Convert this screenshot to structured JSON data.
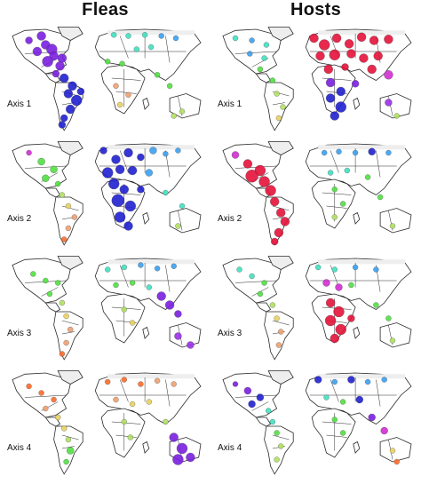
{
  "columns": [
    "Fleas",
    "Hosts"
  ],
  "rows": [
    "Axis 1",
    "Axis 2",
    "Axis 3",
    "Axis 4"
  ],
  "colors": {
    "land": "#ffffff",
    "ice": "#eeeeee",
    "border": "#2a2a2a",
    "palette": [
      "#2020d0",
      "#7a1fe0",
      "#9a30e8",
      "#d22cd2",
      "#e3123a",
      "#ff6a2a",
      "#f0a070",
      "#e8d060",
      "#b0e060",
      "#50e040",
      "#40e0c0",
      "#3aa0f0"
    ]
  },
  "panels": [
    {
      "row": 0,
      "col": 0,
      "dots": [
        [
          0.2,
          0.1,
          1,
          5
        ],
        [
          0.14,
          0.14,
          1,
          4
        ],
        [
          0.22,
          0.18,
          1,
          5
        ],
        [
          0.25,
          0.22,
          1,
          6
        ],
        [
          0.18,
          0.24,
          1,
          5
        ],
        [
          0.26,
          0.28,
          1,
          5
        ],
        [
          0.3,
          0.3,
          1,
          5
        ],
        [
          0.23,
          0.33,
          1,
          6
        ],
        [
          0.29,
          0.37,
          1,
          5
        ],
        [
          0.27,
          0.44,
          1,
          4
        ],
        [
          0.31,
          0.48,
          0,
          5
        ],
        [
          0.35,
          0.55,
          0,
          5
        ],
        [
          0.33,
          0.62,
          0,
          5
        ],
        [
          0.37,
          0.68,
          0,
          6
        ],
        [
          0.34,
          0.76,
          0,
          5
        ],
        [
          0.31,
          0.84,
          0,
          4
        ],
        [
          0.3,
          0.9,
          0,
          4
        ],
        [
          0.39,
          0.6,
          0,
          4
        ],
        [
          0.55,
          0.09,
          10,
          3
        ],
        [
          0.62,
          0.1,
          10,
          3
        ],
        [
          0.7,
          0.09,
          10,
          3
        ],
        [
          0.78,
          0.1,
          11,
          3
        ],
        [
          0.85,
          0.12,
          11,
          3
        ],
        [
          0.66,
          0.22,
          10,
          3
        ],
        [
          0.73,
          0.2,
          10,
          3
        ],
        [
          0.52,
          0.33,
          9,
          3
        ],
        [
          0.59,
          0.35,
          9,
          3
        ],
        [
          0.56,
          0.55,
          6,
          3
        ],
        [
          0.62,
          0.63,
          6,
          3
        ],
        [
          0.58,
          0.72,
          7,
          3
        ],
        [
          0.76,
          0.45,
          9,
          3
        ],
        [
          0.82,
          0.55,
          9,
          3
        ],
        [
          0.88,
          0.78,
          8,
          3
        ],
        [
          0.84,
          0.82,
          8,
          3
        ]
      ]
    },
    {
      "row": 0,
      "col": 1,
      "dots": [
        [
          0.12,
          0.12,
          10,
          3
        ],
        [
          0.2,
          0.14,
          11,
          3
        ],
        [
          0.27,
          0.18,
          10,
          3
        ],
        [
          0.19,
          0.26,
          11,
          3
        ],
        [
          0.26,
          0.3,
          10,
          3
        ],
        [
          0.24,
          0.4,
          9,
          3
        ],
        [
          0.3,
          0.5,
          9,
          3
        ],
        [
          0.32,
          0.62,
          8,
          3
        ],
        [
          0.35,
          0.74,
          8,
          3
        ],
        [
          0.33,
          0.84,
          7,
          3
        ],
        [
          0.5,
          0.12,
          4,
          5
        ],
        [
          0.55,
          0.18,
          4,
          6
        ],
        [
          0.61,
          0.12,
          4,
          5
        ],
        [
          0.67,
          0.17,
          4,
          5
        ],
        [
          0.73,
          0.11,
          4,
          5
        ],
        [
          0.79,
          0.14,
          4,
          5
        ],
        [
          0.86,
          0.13,
          4,
          5
        ],
        [
          0.53,
          0.28,
          4,
          5
        ],
        [
          0.6,
          0.27,
          4,
          6
        ],
        [
          0.68,
          0.26,
          4,
          5
        ],
        [
          0.74,
          0.3,
          4,
          5
        ],
        [
          0.81,
          0.28,
          4,
          5
        ],
        [
          0.57,
          0.4,
          4,
          5
        ],
        [
          0.65,
          0.38,
          4,
          4
        ],
        [
          0.78,
          0.4,
          4,
          5
        ],
        [
          0.86,
          0.45,
          3,
          5
        ],
        [
          0.58,
          0.52,
          1,
          5
        ],
        [
          0.63,
          0.6,
          0,
          5
        ],
        [
          0.58,
          0.66,
          0,
          5
        ],
        [
          0.63,
          0.74,
          0,
          6
        ],
        [
          0.6,
          0.82,
          0,
          5
        ],
        [
          0.7,
          0.53,
          1,
          4
        ],
        [
          0.86,
          0.7,
          2,
          4
        ],
        [
          0.9,
          0.82,
          8,
          3
        ]
      ]
    },
    {
      "row": 1,
      "col": 0,
      "dots": [
        [
          0.14,
          0.12,
          3,
          3
        ],
        [
          0.2,
          0.2,
          9,
          4
        ],
        [
          0.26,
          0.27,
          9,
          4
        ],
        [
          0.22,
          0.35,
          9,
          4
        ],
        [
          0.28,
          0.4,
          9,
          3
        ],
        [
          0.3,
          0.5,
          8,
          3
        ],
        [
          0.33,
          0.6,
          7,
          3
        ],
        [
          0.36,
          0.7,
          6,
          3
        ],
        [
          0.33,
          0.8,
          6,
          3
        ],
        [
          0.31,
          0.9,
          5,
          3
        ],
        [
          0.5,
          0.1,
          0,
          4
        ],
        [
          0.56,
          0.18,
          0,
          5
        ],
        [
          0.62,
          0.12,
          0,
          5
        ],
        [
          0.68,
          0.16,
          0,
          4
        ],
        [
          0.74,
          0.1,
          11,
          4
        ],
        [
          0.8,
          0.13,
          11,
          3
        ],
        [
          0.86,
          0.1,
          11,
          3
        ],
        [
          0.52,
          0.3,
          0,
          6
        ],
        [
          0.58,
          0.27,
          0,
          5
        ],
        [
          0.64,
          0.28,
          0,
          5
        ],
        [
          0.72,
          0.3,
          11,
          4
        ],
        [
          0.55,
          0.4,
          0,
          6
        ],
        [
          0.6,
          0.45,
          0,
          5
        ],
        [
          0.57,
          0.55,
          0,
          7
        ],
        [
          0.63,
          0.6,
          0,
          6
        ],
        [
          0.58,
          0.7,
          0,
          6
        ],
        [
          0.62,
          0.78,
          0,
          5
        ],
        [
          0.68,
          0.45,
          0,
          4
        ],
        [
          0.8,
          0.48,
          10,
          3
        ],
        [
          0.88,
          0.6,
          10,
          3
        ],
        [
          0.86,
          0.78,
          8,
          3
        ]
      ]
    },
    {
      "row": 1,
      "col": 1,
      "dots": [
        [
          0.12,
          0.14,
          3,
          4
        ],
        [
          0.18,
          0.22,
          4,
          5
        ],
        [
          0.24,
          0.28,
          4,
          6
        ],
        [
          0.2,
          0.33,
          4,
          7
        ],
        [
          0.26,
          0.38,
          4,
          6
        ],
        [
          0.29,
          0.46,
          4,
          6
        ],
        [
          0.31,
          0.56,
          4,
          5
        ],
        [
          0.34,
          0.66,
          4,
          5
        ],
        [
          0.36,
          0.74,
          4,
          5
        ],
        [
          0.33,
          0.84,
          4,
          5
        ],
        [
          0.31,
          0.92,
          4,
          4
        ],
        [
          0.55,
          0.12,
          11,
          3
        ],
        [
          0.62,
          0.11,
          11,
          3
        ],
        [
          0.7,
          0.12,
          11,
          3
        ],
        [
          0.78,
          0.11,
          0,
          4
        ],
        [
          0.86,
          0.12,
          11,
          3
        ],
        [
          0.58,
          0.3,
          10,
          3
        ],
        [
          0.66,
          0.28,
          10,
          3
        ],
        [
          0.76,
          0.34,
          9,
          3
        ],
        [
          0.6,
          0.45,
          9,
          3
        ],
        [
          0.64,
          0.58,
          9,
          3
        ],
        [
          0.6,
          0.7,
          8,
          3
        ],
        [
          0.82,
          0.52,
          9,
          3
        ],
        [
          0.88,
          0.78,
          8,
          3
        ]
      ]
    },
    {
      "row": 2,
      "col": 0,
      "dots": [
        [
          0.16,
          0.18,
          9,
          3
        ],
        [
          0.22,
          0.24,
          9,
          3
        ],
        [
          0.28,
          0.26,
          9,
          3
        ],
        [
          0.24,
          0.36,
          9,
          3
        ],
        [
          0.3,
          0.44,
          8,
          3
        ],
        [
          0.32,
          0.56,
          7,
          3
        ],
        [
          0.34,
          0.68,
          6,
          3
        ],
        [
          0.32,
          0.8,
          6,
          3
        ],
        [
          0.3,
          0.9,
          5,
          3
        ],
        [
          0.52,
          0.14,
          10,
          3
        ],
        [
          0.6,
          0.12,
          10,
          3
        ],
        [
          0.68,
          0.1,
          11,
          3
        ],
        [
          0.76,
          0.13,
          11,
          3
        ],
        [
          0.84,
          0.11,
          11,
          3
        ],
        [
          0.56,
          0.28,
          9,
          3
        ],
        [
          0.64,
          0.26,
          9,
          3
        ],
        [
          0.72,
          0.3,
          10,
          3
        ],
        [
          0.78,
          0.38,
          1,
          5
        ],
        [
          0.82,
          0.46,
          1,
          5
        ],
        [
          0.86,
          0.54,
          1,
          4
        ],
        [
          0.6,
          0.5,
          8,
          3
        ],
        [
          0.64,
          0.62,
          7,
          3
        ],
        [
          0.86,
          0.74,
          2,
          4
        ],
        [
          0.92,
          0.82,
          2,
          4
        ]
      ]
    },
    {
      "row": 2,
      "col": 1,
      "dots": [
        [
          0.14,
          0.14,
          10,
          3
        ],
        [
          0.2,
          0.2,
          10,
          3
        ],
        [
          0.26,
          0.26,
          9,
          3
        ],
        [
          0.24,
          0.36,
          9,
          3
        ],
        [
          0.3,
          0.46,
          8,
          3
        ],
        [
          0.32,
          0.58,
          7,
          3
        ],
        [
          0.34,
          0.7,
          6,
          3
        ],
        [
          0.33,
          0.82,
          6,
          3
        ],
        [
          0.52,
          0.12,
          10,
          3
        ],
        [
          0.6,
          0.14,
          10,
          3
        ],
        [
          0.7,
          0.12,
          11,
          3
        ],
        [
          0.8,
          0.14,
          11,
          3
        ],
        [
          0.56,
          0.26,
          3,
          4
        ],
        [
          0.62,
          0.3,
          3,
          4
        ],
        [
          0.68,
          0.28,
          9,
          3
        ],
        [
          0.58,
          0.44,
          4,
          5
        ],
        [
          0.62,
          0.52,
          4,
          6
        ],
        [
          0.58,
          0.6,
          4,
          6
        ],
        [
          0.63,
          0.68,
          4,
          6
        ],
        [
          0.6,
          0.76,
          4,
          5
        ],
        [
          0.68,
          0.58,
          4,
          4
        ],
        [
          0.8,
          0.46,
          9,
          3
        ],
        [
          0.86,
          0.58,
          9,
          3
        ],
        [
          0.88,
          0.78,
          8,
          3
        ]
      ]
    },
    {
      "row": 3,
      "col": 0,
      "dots": [
        [
          0.14,
          0.16,
          5,
          3
        ],
        [
          0.2,
          0.22,
          5,
          3
        ],
        [
          0.26,
          0.28,
          5,
          3
        ],
        [
          0.22,
          0.36,
          6,
          3
        ],
        [
          0.28,
          0.44,
          7,
          3
        ],
        [
          0.31,
          0.54,
          7,
          3
        ],
        [
          0.33,
          0.64,
          8,
          3
        ],
        [
          0.34,
          0.74,
          9,
          4
        ],
        [
          0.32,
          0.84,
          9,
          3
        ],
        [
          0.52,
          0.12,
          5,
          3
        ],
        [
          0.6,
          0.1,
          5,
          3
        ],
        [
          0.68,
          0.14,
          5,
          3
        ],
        [
          0.76,
          0.11,
          6,
          3
        ],
        [
          0.84,
          0.14,
          6,
          3
        ],
        [
          0.56,
          0.28,
          6,
          3
        ],
        [
          0.64,
          0.32,
          7,
          3
        ],
        [
          0.72,
          0.3,
          7,
          3
        ],
        [
          0.6,
          0.48,
          8,
          3
        ],
        [
          0.63,
          0.62,
          8,
          3
        ],
        [
          0.8,
          0.48,
          8,
          3
        ],
        [
          0.84,
          0.62,
          1,
          5
        ],
        [
          0.88,
          0.72,
          1,
          6
        ],
        [
          0.86,
          0.82,
          1,
          6
        ],
        [
          0.92,
          0.8,
          1,
          5
        ]
      ]
    },
    {
      "row": 3,
      "col": 1,
      "dots": [
        [
          0.12,
          0.14,
          1,
          3
        ],
        [
          0.18,
          0.2,
          1,
          4
        ],
        [
          0.24,
          0.26,
          0,
          4
        ],
        [
          0.2,
          0.32,
          0,
          4
        ],
        [
          0.28,
          0.38,
          10,
          3
        ],
        [
          0.3,
          0.48,
          10,
          3
        ],
        [
          0.32,
          0.58,
          9,
          3
        ],
        [
          0.34,
          0.7,
          8,
          3
        ],
        [
          0.32,
          0.82,
          8,
          3
        ],
        [
          0.52,
          0.1,
          0,
          4
        ],
        [
          0.6,
          0.12,
          11,
          3
        ],
        [
          0.68,
          0.1,
          0,
          4
        ],
        [
          0.76,
          0.12,
          11,
          3
        ],
        [
          0.84,
          0.1,
          11,
          3
        ],
        [
          0.56,
          0.26,
          10,
          3
        ],
        [
          0.64,
          0.3,
          9,
          3
        ],
        [
          0.72,
          0.28,
          0,
          4
        ],
        [
          0.6,
          0.46,
          9,
          3
        ],
        [
          0.64,
          0.58,
          9,
          3
        ],
        [
          0.78,
          0.44,
          1,
          4
        ],
        [
          0.84,
          0.56,
          3,
          4
        ],
        [
          0.88,
          0.74,
          7,
          3
        ],
        [
          0.9,
          0.84,
          5,
          3
        ]
      ]
    }
  ]
}
